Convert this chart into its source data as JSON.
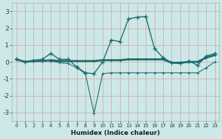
{
  "title": "",
  "xlabel": "Humidex (Indice chaleur)",
  "xlim": [
    -0.5,
    23.5
  ],
  "ylim": [
    -3.5,
    3.5
  ],
  "yticks": [
    -3,
    -2,
    -1,
    0,
    1,
    2,
    3
  ],
  "xticks": [
    0,
    1,
    2,
    3,
    4,
    5,
    6,
    7,
    8,
    9,
    10,
    11,
    12,
    13,
    14,
    15,
    16,
    17,
    18,
    19,
    20,
    21,
    22,
    23
  ],
  "bg_color": "#cce8e8",
  "line_color": "#1a6b6b",
  "grid_color": "#b8d8d8",
  "line1_x": [
    0,
    1,
    2,
    3,
    4,
    5,
    6,
    7,
    8,
    9,
    10,
    11,
    12,
    13,
    14,
    15,
    16,
    17,
    18,
    19,
    20,
    21,
    22,
    23
  ],
  "line1_y": [
    0.15,
    0.0,
    0.1,
    0.15,
    0.5,
    0.15,
    0.15,
    -0.3,
    -0.65,
    -0.7,
    0.0,
    1.3,
    1.2,
    2.55,
    2.65,
    2.7,
    0.8,
    0.25,
    -0.05,
    -0.1,
    0.05,
    -0.2,
    0.35,
    0.5
  ],
  "line1_lw": 1.0,
  "line2_x": [
    0,
    1,
    2,
    3,
    4,
    5,
    6,
    7,
    8,
    9,
    10,
    11,
    12,
    13,
    14,
    15,
    16,
    17,
    18,
    19,
    20,
    21,
    22,
    23
  ],
  "line2_y": [
    0.15,
    0.0,
    0.05,
    0.05,
    0.1,
    0.05,
    0.05,
    0.05,
    0.05,
    0.05,
    0.1,
    0.1,
    0.1,
    0.15,
    0.15,
    0.15,
    0.15,
    0.15,
    -0.05,
    -0.05,
    0.0,
    0.0,
    0.25,
    0.4
  ],
  "line2_lw": 2.0,
  "line3_x": [
    0,
    1,
    2,
    3,
    4,
    5,
    6,
    7,
    8,
    9,
    10,
    11,
    12,
    13,
    14,
    15,
    16,
    17,
    18,
    19,
    20,
    21,
    22,
    23
  ],
  "line3_y": [
    0.15,
    0.0,
    0.05,
    0.05,
    0.05,
    -0.05,
    -0.1,
    -0.35,
    -0.7,
    -3.05,
    -0.7,
    -0.65,
    -0.65,
    -0.65,
    -0.65,
    -0.65,
    -0.65,
    -0.65,
    -0.65,
    -0.65,
    -0.65,
    -0.65,
    -0.35,
    0.0
  ],
  "line3_lw": 0.8
}
